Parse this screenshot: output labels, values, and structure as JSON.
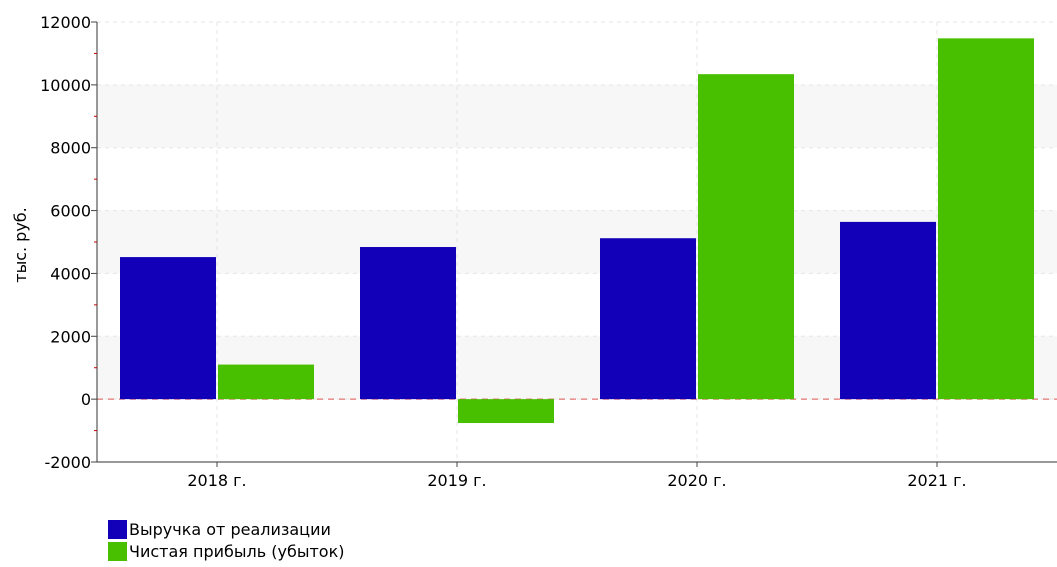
{
  "chart_data": {
    "type": "bar",
    "title": "",
    "xlabel": "",
    "ylabel": "тыс. руб.",
    "categories": [
      "2018 г.",
      "2019 г.",
      "2020 г.",
      "2021 г."
    ],
    "series": [
      {
        "name": "Выручка от реализации",
        "color": "#1100b8",
        "values": [
          4520,
          4840,
          5120,
          5640
        ]
      },
      {
        "name": "Чистая прибыль (убыток)",
        "color": "#48c000",
        "values": [
          1100,
          -760,
          10340,
          11480
        ]
      }
    ],
    "ylim": [
      -2000,
      12000
    ],
    "yticks": [
      -2000,
      0,
      2000,
      4000,
      6000,
      8000,
      10000,
      12000
    ],
    "grid": true,
    "legend_position": "bottom-left"
  }
}
